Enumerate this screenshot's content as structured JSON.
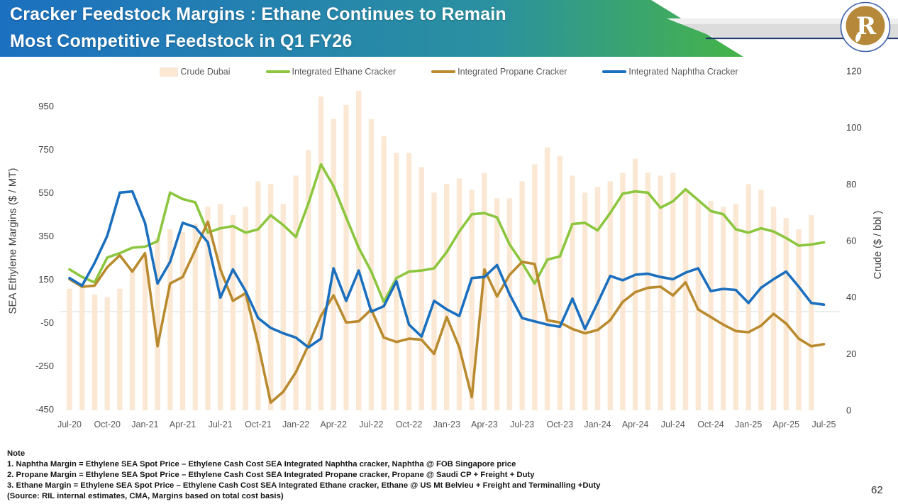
{
  "header": {
    "title_line1": "Cracker Feedstock Margins : Ethane Continues to Remain",
    "title_line2": "Most Competitive Feedstock in Q1 FY26"
  },
  "logo": {
    "letter": "R"
  },
  "legend": [
    {
      "label": "Crude Dubai",
      "color": "#FAE8D4",
      "type": "box"
    },
    {
      "label": "Integrated Ethane Cracker",
      "color": "#8CC63E",
      "type": "line"
    },
    {
      "label": "Integrated Propane Cracker",
      "color": "#B98A2E",
      "type": "line"
    },
    {
      "label": "Integrated Naphtha Cracker",
      "color": "#1B6FBF",
      "type": "line"
    }
  ],
  "axes": {
    "left_title": "SEA Ethylene Margins ($ / MT)",
    "right_title": "Crude ($ / bbl )",
    "left_ticks": [
      950,
      750,
      550,
      350,
      150,
      -50,
      -250,
      -450
    ],
    "right_ticks": [
      120,
      100,
      80,
      60,
      40,
      20,
      0
    ]
  },
  "chart_data": {
    "type": "combo",
    "categories": [
      "Jul-20",
      "Aug-20",
      "Sep-20",
      "Oct-20",
      "Nov-20",
      "Dec-20",
      "Jan-21",
      "Feb-21",
      "Mar-21",
      "Apr-21",
      "May-21",
      "Jun-21",
      "Jul-21",
      "Aug-21",
      "Sep-21",
      "Oct-21",
      "Nov-21",
      "Dec-21",
      "Jan-22",
      "Feb-22",
      "Mar-22",
      "Apr-22",
      "May-22",
      "Jun-22",
      "Jul-22",
      "Aug-22",
      "Sep-22",
      "Oct-22",
      "Nov-22",
      "Dec-22",
      "Jan-23",
      "Feb-23",
      "Mar-23",
      "Apr-23",
      "May-23",
      "Jun-23",
      "Jul-23",
      "Aug-23",
      "Sep-23",
      "Oct-23",
      "Nov-23",
      "Dec-23",
      "Jan-24",
      "Feb-24",
      "Mar-24",
      "Apr-24",
      "May-24",
      "Jun-24",
      "Jul-24",
      "Aug-24",
      "Sep-24",
      "Oct-24",
      "Nov-24",
      "Dec-24",
      "Jan-25",
      "Feb-25",
      "Mar-25",
      "Apr-25",
      "May-25",
      "Jun-25",
      "Jul-25"
    ],
    "x_tick_labels": [
      "Jul-20",
      "Oct-20",
      "Jan-21",
      "Apr-21",
      "Jul-21",
      "Oct-21",
      "Jan-22",
      "Apr-22",
      "Jul-22",
      "Oct-22",
      "Jan-23",
      "Apr-23",
      "Jul-23",
      "Oct-23",
      "Jan-24",
      "Apr-24",
      "Jul-24",
      "Oct-24",
      "Jan-25",
      "Apr-25",
      "Jul-25"
    ],
    "left_axis": {
      "label": "SEA Ethylene Margins ($ / MT)",
      "range": [
        -450,
        950
      ],
      "ticks": [
        950,
        750,
        550,
        350,
        150,
        -50,
        -250,
        -450
      ]
    },
    "right_axis": {
      "label": "Crude ($ / bbl )",
      "range": [
        0,
        120
      ],
      "ticks": [
        120,
        100,
        80,
        60,
        40,
        20,
        0
      ]
    },
    "grid": "zero-line-only",
    "legend_position": "top",
    "series": [
      {
        "name": "Crude Dubai",
        "type": "bar",
        "axis": "right",
        "color": "#FAE8D4",
        "values": [
          43,
          44,
          41,
          40,
          43,
          50,
          55,
          61,
          64,
          63,
          66,
          72,
          73,
          69,
          72,
          81,
          80,
          73,
          83,
          92,
          111,
          103,
          108,
          113,
          103,
          97,
          91,
          91,
          86,
          77,
          80,
          82,
          78,
          84,
          75,
          75,
          81,
          87,
          93,
          90,
          83,
          77,
          79,
          81,
          84,
          89,
          84,
          83,
          84,
          78,
          74,
          74,
          72,
          73,
          80,
          78,
          72,
          68,
          64,
          69,
          null
        ]
      },
      {
        "name": "Integrated Ethane Cracker",
        "type": "line",
        "axis": "left",
        "color": "#8CC63E",
        "values": [
          195,
          160,
          135,
          250,
          270,
          295,
          300,
          325,
          550,
          520,
          505,
          365,
          385,
          395,
          365,
          380,
          445,
          400,
          345,
          500,
          680,
          580,
          435,
          295,
          185,
          45,
          155,
          185,
          190,
          200,
          275,
          370,
          450,
          455,
          435,
          310,
          225,
          130,
          240,
          255,
          405,
          410,
          375,
          455,
          545,
          555,
          550,
          480,
          510,
          565,
          515,
          465,
          450,
          380,
          365,
          385,
          370,
          340,
          305,
          310,
          320
        ]
      },
      {
        "name": "Integrated Propane Cracker",
        "type": "line",
        "axis": "left",
        "color": "#B98A2E",
        "values": [
          150,
          115,
          120,
          205,
          260,
          185,
          270,
          -160,
          130,
          160,
          285,
          415,
          195,
          50,
          85,
          -150,
          -420,
          -370,
          -280,
          -155,
          -20,
          75,
          -50,
          -45,
          10,
          -120,
          -140,
          -125,
          -130,
          -195,
          -25,
          -165,
          -395,
          195,
          70,
          170,
          230,
          220,
          -40,
          -50,
          -80,
          -100,
          -85,
          -40,
          45,
          90,
          110,
          115,
          75,
          135,
          10,
          -25,
          -60,
          -90,
          -95,
          -65,
          -10,
          -55,
          -125,
          -160,
          -150
        ]
      },
      {
        "name": "Integrated Naphtha Cracker",
        "type": "line",
        "axis": "left",
        "color": "#1B6FBF",
        "values": [
          155,
          120,
          225,
          350,
          550,
          555,
          410,
          130,
          230,
          410,
          390,
          320,
          65,
          195,
          95,
          -30,
          -75,
          -100,
          -120,
          -165,
          -125,
          200,
          50,
          190,
          0,
          25,
          140,
          -60,
          -115,
          50,
          10,
          -20,
          155,
          160,
          215,
          80,
          -30,
          -45,
          -60,
          -70,
          60,
          -80,
          40,
          165,
          145,
          170,
          175,
          160,
          150,
          180,
          200,
          95,
          105,
          100,
          40,
          110,
          150,
          185,
          115,
          40,
          32
        ]
      }
    ]
  },
  "notes": {
    "title": "Note",
    "line1": "1. Naphtha Margin = Ethylene SEA Spot Price – Ethylene Cash Cost SEA Integrated Naphtha cracker,  Naphtha @ FOB Singapore price",
    "line2": "2. Propane Margin = Ethylene SEA Spot Price – Ethylene Cash Cost SEA Integrated Propane cracker,  Propane  @ Saudi CP + Freight + Duty",
    "line3": "3. Ethane Margin = Ethylene SEA Spot Price –  Ethylene Cash Cost SEA Integrated Ethane cracker,    Ethane @ US Mt Belvieu + Freight and Terminalling +Duty",
    "source": "(Source:  RIL internal estimates, CMA, Margins based on total cost basis)"
  },
  "page_number": "62",
  "colors": {
    "header_gradient_start": "#1C70C0",
    "header_gradient_end": "#45B34A",
    "zero_line": "#D9D9D9",
    "axis_text": "#595959",
    "logo_gold": "#B5883A",
    "logo_ring": "#3B5EA8"
  }
}
